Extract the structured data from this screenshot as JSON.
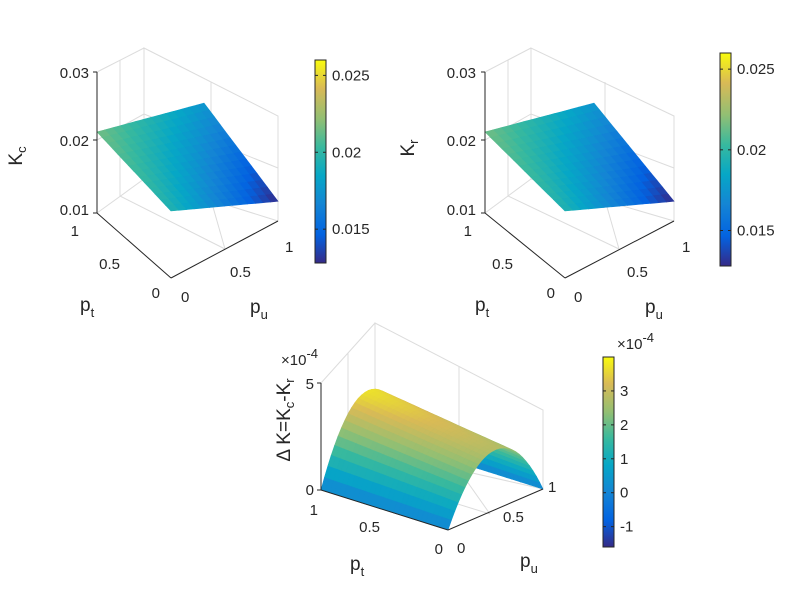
{
  "chart_data": [
    {
      "type": "surface",
      "zlabel": "K_c",
      "zlabel_main": "K",
      "zlabel_sub": "c",
      "xlabel_main": "p",
      "xlabel_sub": "t",
      "ylabel_main": "p",
      "ylabel_sub": "u",
      "x_ticks": [
        "0",
        "0.5",
        "1"
      ],
      "y_ticks": [
        "0",
        "0.5",
        "1"
      ],
      "z_ticks": [
        "0.01",
        "0.02",
        "0.03"
      ],
      "z_tick_values": [
        0.01,
        0.02,
        0.03
      ],
      "zlim": [
        0.01,
        0.03
      ],
      "colorbar_ticks": [
        "0.015",
        "0.02",
        "0.025"
      ],
      "colorbar_tick_values": [
        0.015,
        0.02,
        0.025
      ],
      "colorbar_range": [
        0.0128,
        0.026
      ],
      "corner_values": {
        "pt0_pu0": 0.0195,
        "pt1_pu0": 0.0215,
        "pt0_pu1": 0.0128,
        "pt1_pu1": 0.0175
      }
    },
    {
      "type": "surface",
      "zlabel": "K_r",
      "zlabel_main": "K",
      "zlabel_sub": "r",
      "xlabel_main": "p",
      "xlabel_sub": "t",
      "ylabel_main": "p",
      "ylabel_sub": "u",
      "x_ticks": [
        "0",
        "0.5",
        "1"
      ],
      "y_ticks": [
        "0",
        "0.5",
        "1"
      ],
      "z_ticks": [
        "0.01",
        "0.02",
        "0.03"
      ],
      "z_tick_values": [
        0.01,
        0.02,
        0.03
      ],
      "zlim": [
        0.01,
        0.03
      ],
      "colorbar_ticks": [
        "0.015",
        "0.02",
        "0.025"
      ],
      "colorbar_tick_values": [
        0.015,
        0.02,
        0.025
      ],
      "colorbar_range": [
        0.0128,
        0.026
      ],
      "corner_values": {
        "pt0_pu0": 0.0195,
        "pt1_pu0": 0.0215,
        "pt0_pu1": 0.0128,
        "pt1_pu1": 0.0175
      }
    },
    {
      "type": "surface",
      "zlabel": "Δ K=K_c-K_r",
      "zlabel_parts": [
        "Δ K=K",
        "c",
        "-K",
        "r"
      ],
      "xlabel_main": "p",
      "xlabel_sub": "t",
      "ylabel_main": "p",
      "ylabel_sub": "u",
      "x_ticks": [
        "0",
        "0.5",
        "1"
      ],
      "y_ticks": [
        "0",
        "0.5",
        "1"
      ],
      "z_ticks": [
        "0",
        "5"
      ],
      "z_tick_values": [
        0,
        5
      ],
      "zlim": [
        0,
        5
      ],
      "z_exponent_base": "×10",
      "z_exponent": "-4",
      "colorbar_ticks": [
        "-1",
        "0",
        "1",
        "2",
        "3"
      ],
      "colorbar_tick_values": [
        -1,
        0,
        1,
        2,
        3
      ],
      "colorbar_range": [
        -1.6,
        4.0
      ],
      "colorbar_exponent_base": "×10",
      "colorbar_exponent": "-4",
      "model": "z = 4*pu*(1-pu)*(A + B*pt), A=2.8, B=0.9, scaled 1e-4"
    }
  ]
}
